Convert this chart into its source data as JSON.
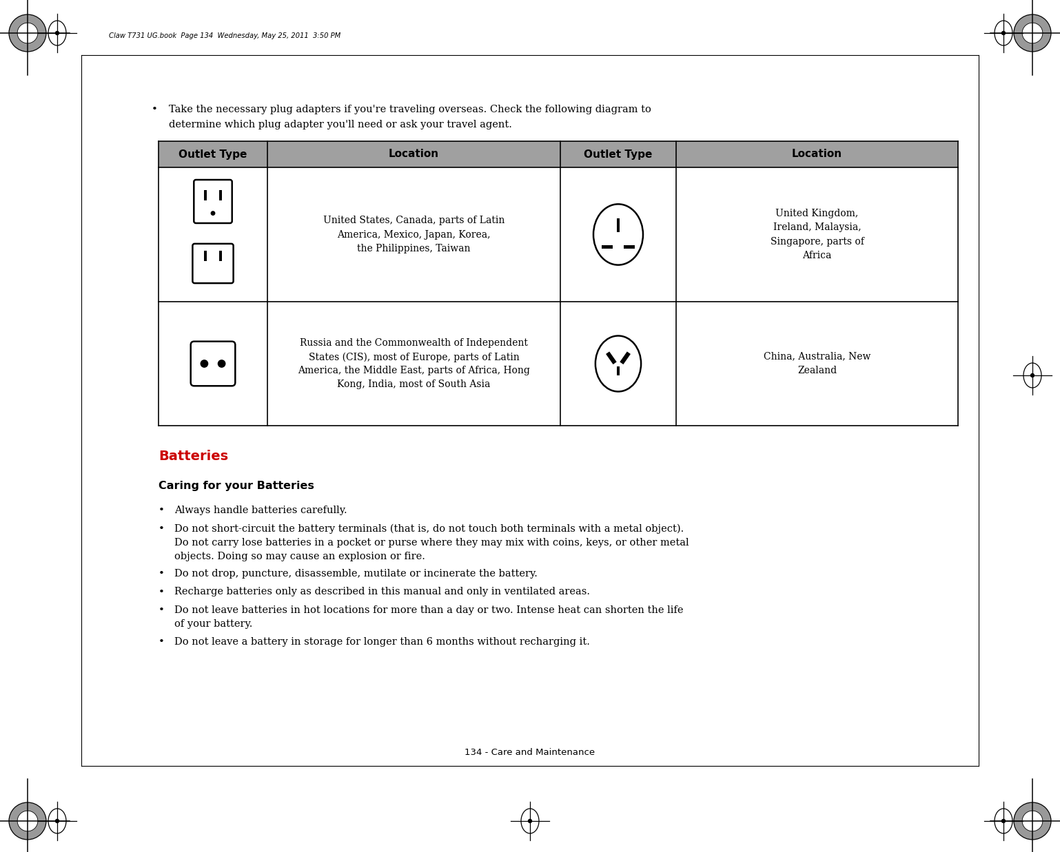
{
  "page_bg": "#ffffff",
  "page_width": 15.38,
  "page_height": 12.37,
  "dpi": 100,
  "header_text": "Claw T731 UG.book  Page 134  Wednesday, May 25, 2011  3:50 PM",
  "footer_text": "134 - Care and Maintenance",
  "bullet_text_1a": "Take the necessary plug adapters if you're traveling overseas. Check the following diagram to",
  "bullet_text_1b": "determine which plug adapter you'll need or ask your travel agent.",
  "table_header_bg": "#a0a0a0",
  "table_headers": [
    "Outlet Type",
    "Location",
    "Outlet Type",
    "Location"
  ],
  "table_row1_loc1": "United States, Canada, parts of Latin\nAmerica, Mexico, Japan, Korea,\nthe Philippines, Taiwan",
  "table_row1_loc2": "United Kingdom,\nIreland, Malaysia,\nSingapore, parts of\nAfrica",
  "table_row2_loc1": "Russia and the Commonwealth of Independent\nStates (CIS), most of Europe, parts of Latin\nAmerica, the Middle East, parts of Africa, Hong\nKong, India, most of South Asia",
  "table_row2_loc2": "China, Australia, New\nZealand",
  "batteries_heading": "Batteries",
  "batteries_heading_color": "#cc0000",
  "caring_heading": "Caring for your Batteries",
  "bullet_items": [
    "Always handle batteries carefully.",
    "Do not short-circuit the battery terminals (that is, do not touch both terminals with a metal object).\nDo not carry lose batteries in a pocket or purse where they may mix with coins, keys, or other metal\nobjects. Doing so may cause an explosion or fire.",
    "Do not drop, puncture, disassemble, mutilate or incinerate the battery.",
    "Recharge batteries only as described in this manual and only in ventilated areas.",
    "Do not leave batteries in hot locations for more than a day or two. Intense heat can shorten the life\nof your battery.",
    "Do not leave a battery in storage for longer than 6 months without recharging it."
  ]
}
